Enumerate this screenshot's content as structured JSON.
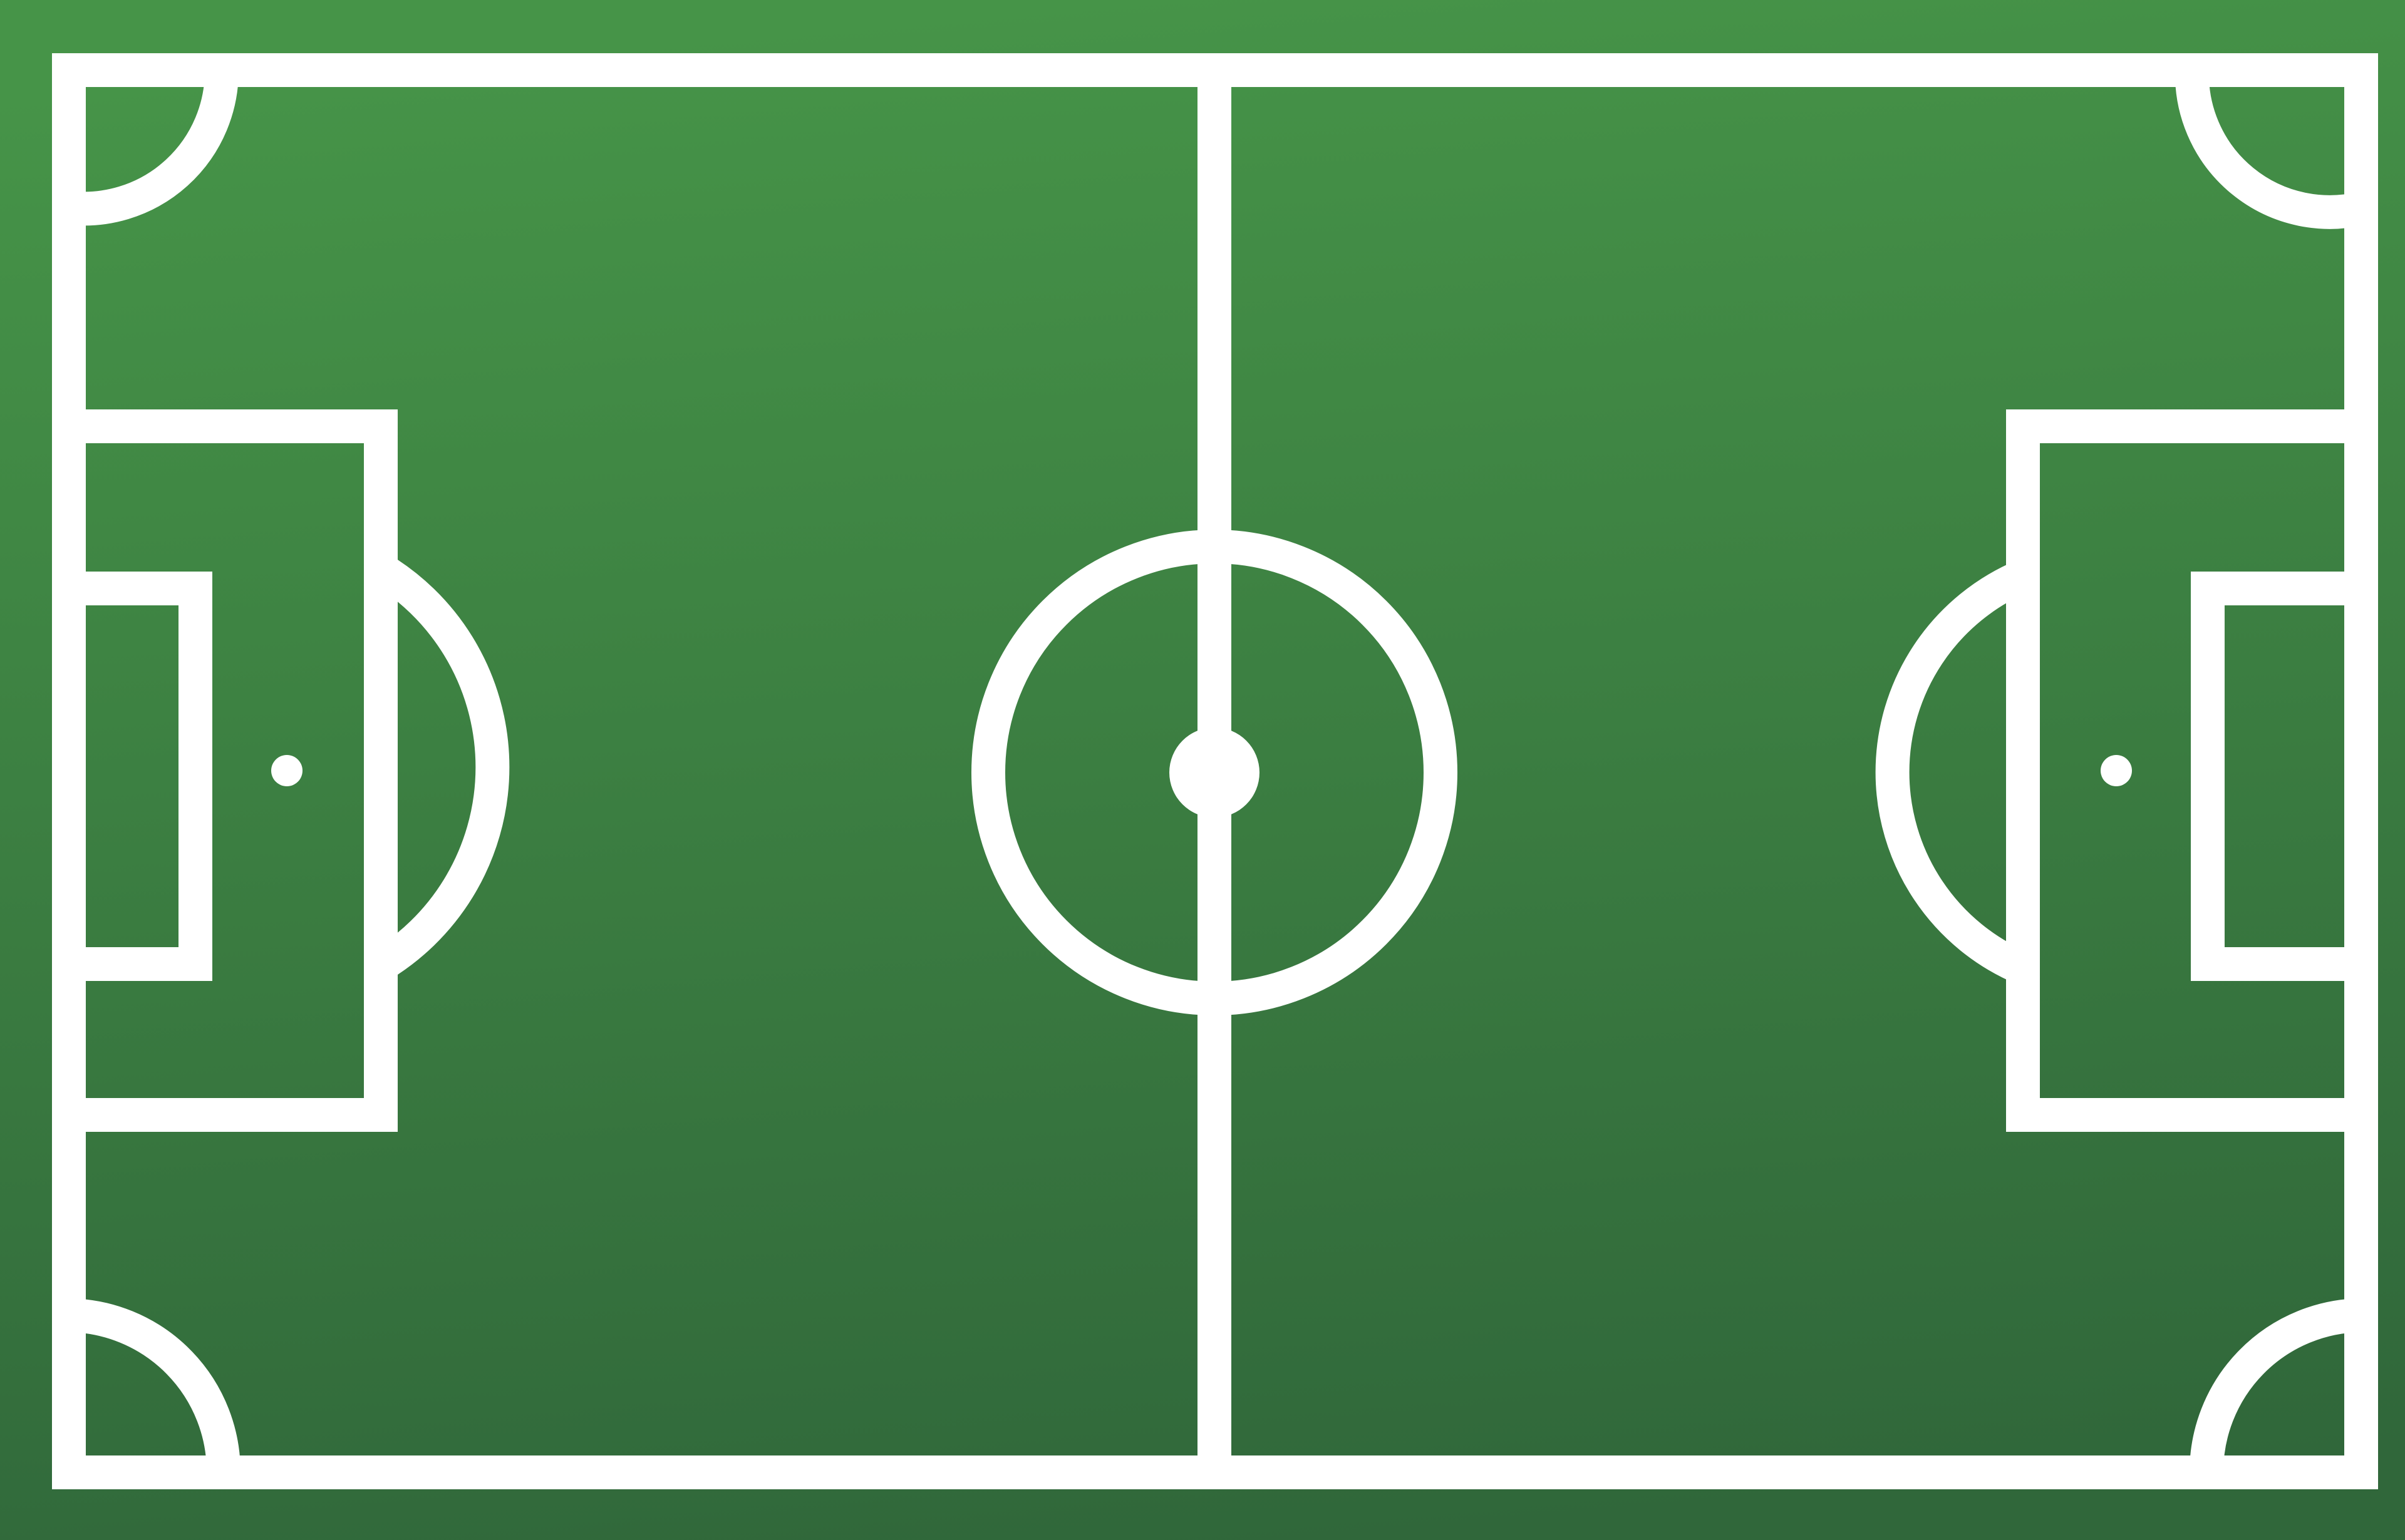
{
  "scene": {
    "subject": "soccer-field-top-view",
    "colors": {
      "grass_light": "#469448",
      "grass_dark": "#30673A",
      "line": "#ffffff"
    }
  }
}
